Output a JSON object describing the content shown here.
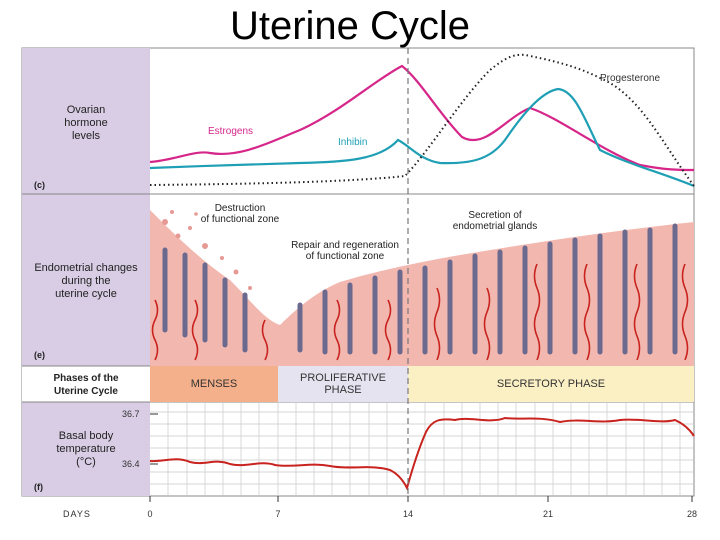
{
  "slide": {
    "title": "Uterine Cycle"
  },
  "panels": {
    "hormones": {
      "label": "Ovarian\nhormone\nlevels",
      "letter": "(c)"
    },
    "endometrium": {
      "label": "Endometrial changes\nduring the\nuterine cycle",
      "letter": "(e)"
    },
    "phases": {
      "label": "Phases of the\nUterine Cycle"
    },
    "temperature": {
      "label": "Basal body\ntemperature\n(°C)",
      "letter": "(f)"
    }
  },
  "curves": {
    "estrogens": {
      "label": "Estrogens",
      "color": "#d6268a"
    },
    "inhibin": {
      "label": "Inhibin",
      "color": "#1f9fb5"
    },
    "progesterone": {
      "label": "Progesterone",
      "color": "#222222"
    }
  },
  "annotations": {
    "destruction": "Destruction\nof functional zone",
    "repair": "Repair and regeneration\nof functional zone",
    "secretion": "Secretion of\nendometrial glands"
  },
  "phases": [
    {
      "label": "MENSES",
      "color": "#f4b08a"
    },
    {
      "label": "PROLIFERATIVE\nPHASE",
      "color": "#e6e3f0"
    },
    {
      "label": "SECRETORY PHASE",
      "color": "#fbefc4"
    }
  ],
  "temperature_axis": {
    "ticks": [
      "36.7",
      "36.4"
    ]
  },
  "days_axis": {
    "title": "DAYS",
    "ticks": [
      "0",
      "7",
      "14",
      "21",
      "28"
    ]
  },
  "colors": {
    "sidebar": "#d8cde4",
    "tissue": "#f2b8b0",
    "gland": "#6b6a8e",
    "vessel": "#c8231e"
  }
}
